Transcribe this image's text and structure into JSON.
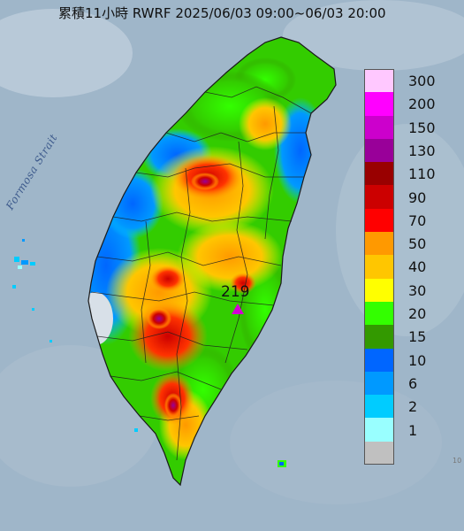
{
  "header": {
    "title": "累積11小時 RWRF 2025/06/03 09:00~06/03 20:00"
  },
  "map_labels": {
    "strait": "Formosa Strait",
    "max_value": "219",
    "corner_text": "10"
  },
  "legend": {
    "items": [
      {
        "label": "300",
        "color": "#ffc8ff"
      },
      {
        "label": "200",
        "color": "#ff00ff"
      },
      {
        "label": "150",
        "color": "#cc00cc"
      },
      {
        "label": "130",
        "color": "#990099"
      },
      {
        "label": "110",
        "color": "#990000"
      },
      {
        "label": "90",
        "color": "#cc0000"
      },
      {
        "label": "70",
        "color": "#ff0000"
      },
      {
        "label": "50",
        "color": "#ff9900"
      },
      {
        "label": "40",
        "color": "#ffc600"
      },
      {
        "label": "30",
        "color": "#ffff00"
      },
      {
        "label": "20",
        "color": "#33ff00"
      },
      {
        "label": "15",
        "color": "#339900"
      },
      {
        "label": "10",
        "color": "#0066ff"
      },
      {
        "label": "6",
        "color": "#0099ff"
      },
      {
        "label": "2",
        "color": "#00ccff"
      },
      {
        "label": "1",
        "color": "#99ffff"
      },
      {
        "label": "",
        "color": "#c0c0c0"
      }
    ]
  },
  "colors": {
    "sea": "#9fb6c9",
    "marker": "#d400d4"
  }
}
